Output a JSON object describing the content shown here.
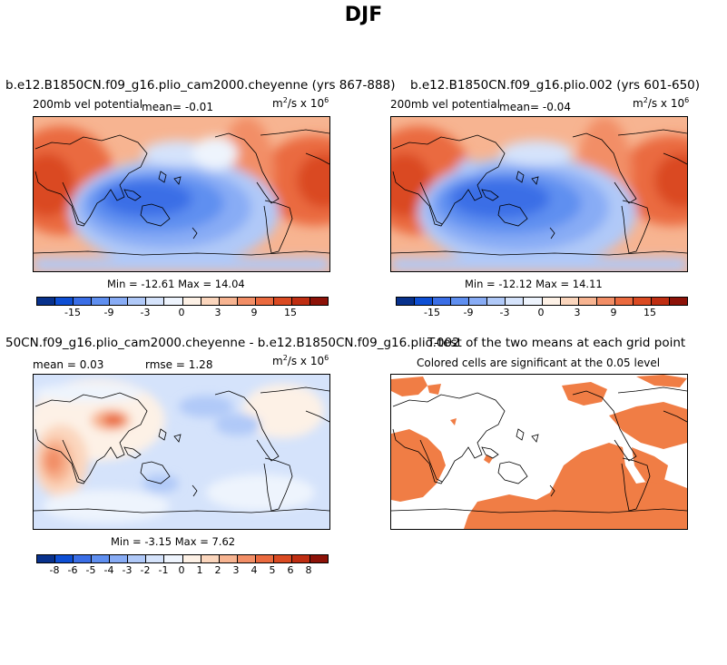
{
  "title": "DJF",
  "panels": [
    {
      "title": "b.e12.B1850CN.f09_g16.plio_cam2000.cheyenne (yrs 867-888)",
      "field": "200mb vel potential",
      "stat1": "mean=   -0.01",
      "units": "m",
      "units_rest": "/s x 10",
      "units_exp1": "2",
      "units_exp2": "6",
      "minmax": "Min = -12.61 Max =  14.04",
      "ticks": [
        "-15",
        "-9",
        "-3",
        "0",
        "3",
        "9",
        "15"
      ]
    },
    {
      "title": "b.e12.B1850CN.f09_g16.plio.002 (yrs 601-650)",
      "field": "200mb vel potential",
      "stat1": "mean=   -0.04",
      "units": "m",
      "units_rest": "/s x 10",
      "units_exp1": "2",
      "units_exp2": "6",
      "minmax": "Min = -12.12 Max =  14.11",
      "ticks": [
        "-15",
        "-9",
        "-3",
        "0",
        "3",
        "9",
        "15"
      ]
    },
    {
      "title": "50CN.f09_g16.plio_cam2000.cheyenne - b.e12.B1850CN.f09_g16.plio.002",
      "stat1": "mean =   0.03",
      "stat2": "rmse =   1.28",
      "units": "m",
      "units_rest": "/s x 10",
      "units_exp1": "2",
      "units_exp2": "6",
      "minmax": "Min = -3.15 Max =   7.62",
      "ticks": [
        "-8",
        "-6",
        "-5",
        "-4",
        "-3",
        "-2",
        "-1",
        "0",
        "1",
        "2",
        "3",
        "4",
        "5",
        "6",
        "8"
      ]
    },
    {
      "title": "T-test of the two means at each grid point",
      "subtitle": "Colored cells are significant at the 0.05 level"
    }
  ],
  "colors": {
    "scale16": [
      "#08318c",
      "#0e4fd4",
      "#3a6ee6",
      "#5f8ff0",
      "#88acf5",
      "#b0c9f8",
      "#d5e3fb",
      "#eef4fd",
      "#fdf1e6",
      "#fbd6bd",
      "#f7b491",
      "#f28e66",
      "#ea6a3f",
      "#da4a22",
      "#bf2e12",
      "#8d1208"
    ],
    "significance": "#f07d45"
  }
}
